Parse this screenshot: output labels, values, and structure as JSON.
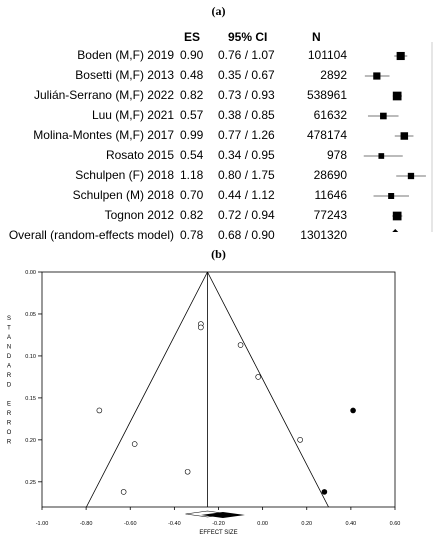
{
  "panel_a_label": "(a)",
  "panel_b_label": "(b)",
  "forest": {
    "headers": {
      "es": "ES",
      "ci": "95% CI",
      "n": "N"
    },
    "rows": [
      {
        "study": "Boden (M,F) 2019",
        "es": "0.90",
        "ci": "0.76 / 1.07",
        "n": "101104",
        "value": 0.9,
        "low": 0.76,
        "high": 1.07,
        "weight": 0.85
      },
      {
        "study": "Bosetti (M,F) 2013",
        "es": "0.48",
        "ci": "0.35 / 0.67",
        "n": "2892",
        "value": 0.48,
        "low": 0.35,
        "high": 0.67,
        "weight": 0.7
      },
      {
        "study": "Julián-Serrano (M,F) 2022",
        "es": "0.82",
        "ci": "0.73 / 0.93",
        "n": "538961",
        "value": 0.82,
        "low": 0.73,
        "high": 0.93,
        "weight": 0.95
      },
      {
        "study": "Luu (M,F) 2021",
        "es": "0.57",
        "ci": "0.38 / 0.85",
        "n": "61632",
        "value": 0.57,
        "low": 0.38,
        "high": 0.85,
        "weight": 0.6
      },
      {
        "study": "Molina-Montes (M,F) 2017",
        "es": "0.99",
        "ci": "0.77 / 1.26",
        "n": "478174",
        "value": 0.99,
        "low": 0.77,
        "high": 1.26,
        "weight": 0.75
      },
      {
        "study": "Rosato 2015",
        "es": "0.54",
        "ci": "0.34 / 0.95",
        "n": "978",
        "value": 0.54,
        "low": 0.34,
        "high": 0.95,
        "weight": 0.45
      },
      {
        "study": "Schulpen (F) 2018",
        "es": "1.18",
        "ci": "0.80 / 1.75",
        "n": "28690",
        "value": 1.18,
        "low": 0.8,
        "high": 1.75,
        "weight": 0.55
      },
      {
        "study": "Schulpen (M) 2018",
        "es": "0.70",
        "ci": "0.44 / 1.12",
        "n": "11646",
        "value": 0.7,
        "low": 0.44,
        "high": 1.12,
        "weight": 0.5
      },
      {
        "study": "Tognon 2012",
        "es": "0.82",
        "ci": "0.72 / 0.94",
        "n": "77243",
        "value": 0.82,
        "low": 0.72,
        "high": 0.94,
        "weight": 0.95
      }
    ],
    "overall": {
      "study": "Overall (random-effects model)",
      "es": "0.78",
      "ci": "0.68 / 0.90",
      "n": "1301320",
      "value": 0.78,
      "low": 0.68,
      "high": 0.9
    }
  },
  "chart_data": [
    {
      "type": "scatter",
      "title": "",
      "categories": [
        "Boden (M,F) 2019",
        "Bosetti (M,F) 2013",
        "Julián-Serrano (M,F) 2022",
        "Luu (M,F) 2021",
        "Molina-Montes (M,F) 2017",
        "Rosato 2015",
        "Schulpen (F) 2018",
        "Schulpen (M) 2018",
        "Tognon 2012",
        "Overall (random-effects model)"
      ],
      "values": [
        0.9,
        0.48,
        0.82,
        0.57,
        0.99,
        0.54,
        1.18,
        0.7,
        0.82,
        0.78
      ],
      "ci_low": [
        0.76,
        0.35,
        0.73,
        0.38,
        0.77,
        0.34,
        0.8,
        0.44,
        0.72,
        0.68
      ],
      "ci_high": [
        1.07,
        0.67,
        0.93,
        0.85,
        1.26,
        0.95,
        1.75,
        1.12,
        0.94,
        0.9
      ],
      "scale": "log"
    },
    {
      "type": "scatter",
      "title": "",
      "xlabel": "EFFECT SIZE",
      "ylabel": "STANDARD ERROR",
      "xlim": [
        -1.0,
        0.6
      ],
      "ylim": [
        0.0,
        0.28
      ],
      "y_inverted": true,
      "x_ticks": [
        "-1.00",
        "-0.80",
        "-0.60",
        "-0.40",
        "-0.20",
        "0.00",
        "0.20",
        "0.40",
        "0.60"
      ],
      "y_ticks": [
        "0.00",
        "0.05",
        "0.10",
        "0.15",
        "0.20",
        "0.25"
      ],
      "pooled_effect": -0.25,
      "adjusted_effect": -0.18,
      "series": [
        {
          "name": "observed",
          "style": "open",
          "x": [
            -0.74,
            -0.58,
            -0.63,
            -0.34,
            -0.28,
            -0.28,
            -0.1,
            -0.02,
            0.17
          ],
          "y": [
            0.165,
            0.205,
            0.262,
            0.238,
            0.062,
            0.066,
            0.087,
            0.125,
            0.2
          ]
        },
        {
          "name": "imputed",
          "style": "filled",
          "x": [
            0.41,
            0.28
          ],
          "y": [
            0.165,
            0.262
          ]
        }
      ]
    }
  ]
}
